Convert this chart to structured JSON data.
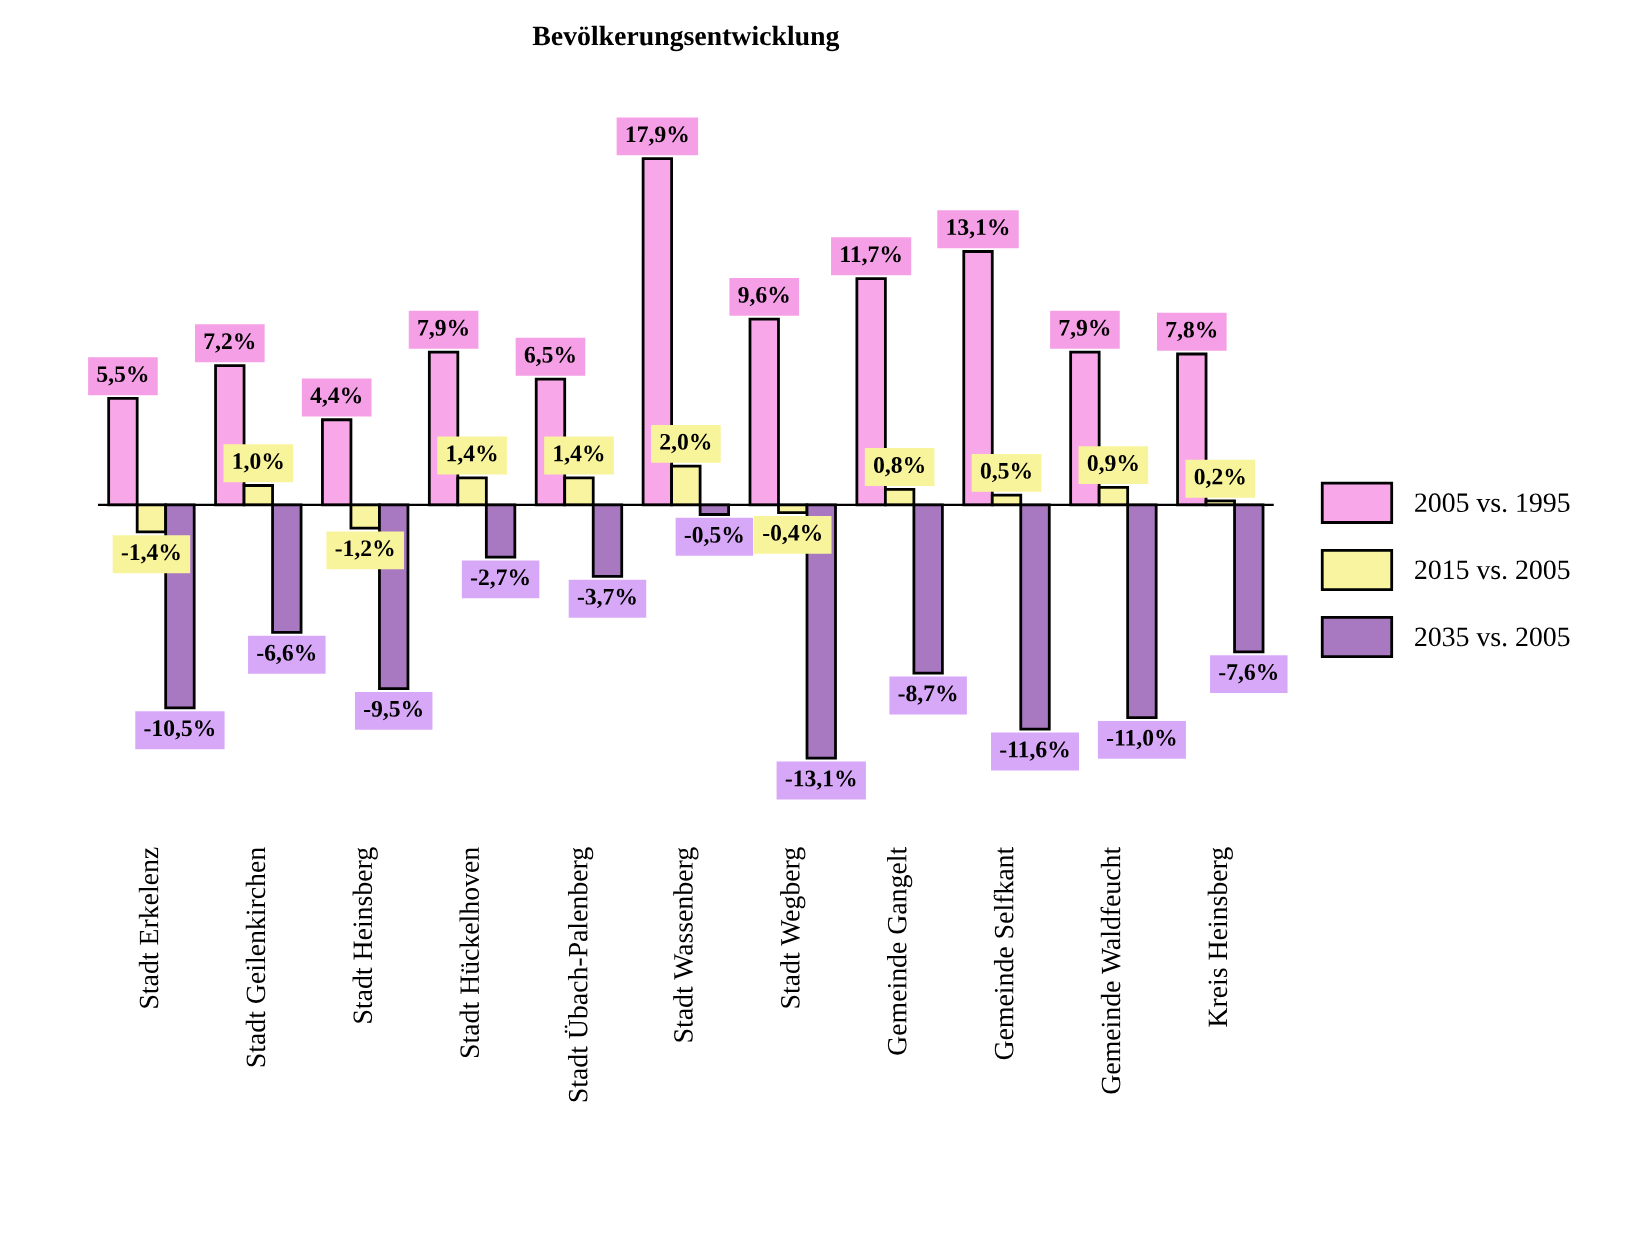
{
  "chart_data": {
    "type": "bar",
    "title": "Bevölkerungsentwicklung",
    "categories": [
      "Stadt Erkelenz",
      "Stadt Geilenkirchen",
      "Stadt Heinsberg",
      "Stadt Hückelhoven",
      "Stadt Übach-Palenberg",
      "Stadt Wassenberg",
      "Stadt Wegberg",
      "Gemeinde Gangelt",
      "Gemeinde Selfkant",
      "Gemeinde Waldfeucht",
      "Kreis Heinsberg"
    ],
    "series": [
      {
        "name": "2005 vs. 1995",
        "color": "#f8a8e8",
        "values": [
          5.5,
          7.2,
          4.4,
          7.9,
          6.5,
          17.9,
          9.6,
          11.7,
          13.1,
          7.9,
          7.8
        ],
        "value_labels": [
          "5,5%",
          "7,2%",
          "4,4%",
          "7,9%",
          "6,5%",
          "17,9%",
          "9,6%",
          "11,7%",
          "13,1%",
          "7,9%",
          "7,8%"
        ]
      },
      {
        "name": "2015 vs. 2005",
        "color": "#f8f4a0",
        "values": [
          -1.4,
          1.0,
          -1.2,
          1.4,
          1.4,
          2.0,
          -0.4,
          0.8,
          0.5,
          0.9,
          0.2
        ],
        "value_labels": [
          "-1,4%",
          "1,0%",
          "-1,2%",
          "1,4%",
          "1,4%",
          "2,0%",
          "-0,4%",
          "0,8%",
          "0,5%",
          "0,9%",
          "0,2%"
        ]
      },
      {
        "name": "2035 vs. 2005",
        "color": "#a878c0",
        "values": [
          -10.5,
          -6.6,
          -9.5,
          -2.7,
          -3.7,
          -0.5,
          -13.1,
          -8.7,
          -11.6,
          -11.0,
          -7.6
        ],
        "value_labels": [
          "-10,5%",
          "-6,6%",
          "-9,5%",
          "-2,7%",
          "-3,7%",
          "-0,5%",
          "-13,1%",
          "-8,7%",
          "-11,6%",
          "-11,0%",
          "-7,6%"
        ]
      }
    ],
    "legend": "right",
    "grid": false
  }
}
